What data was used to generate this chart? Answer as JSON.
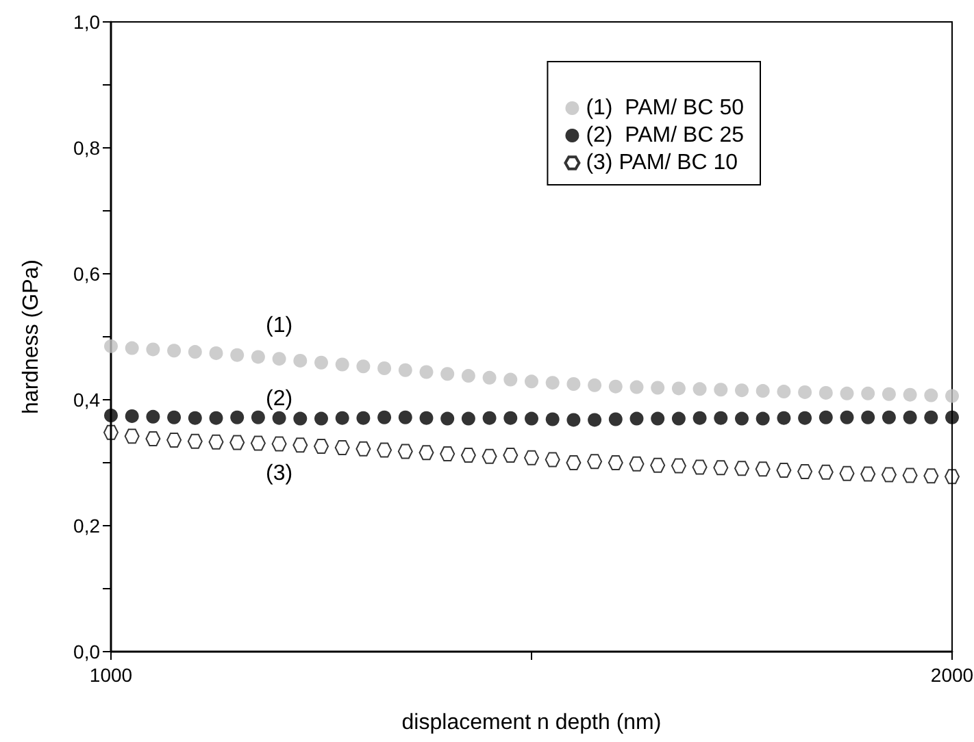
{
  "chart_data": {
    "type": "scatter",
    "xlabel": "displacement n depth (nm)",
    "ylabel": "hardness (GPa)",
    "x": [
      1000,
      1025,
      1050,
      1075,
      1100,
      1125,
      1150,
      1175,
      1200,
      1225,
      1250,
      1275,
      1300,
      1325,
      1350,
      1375,
      1400,
      1425,
      1450,
      1475,
      1500,
      1525,
      1550,
      1575,
      1600,
      1625,
      1650,
      1675,
      1700,
      1725,
      1750,
      1775,
      1800,
      1825,
      1850,
      1875,
      1900,
      1925,
      1950,
      1975,
      2000
    ],
    "series": [
      {
        "name": "(1)  PAM/ BC 50",
        "color": "#c0c0c0",
        "values": [
          0.485,
          0.482,
          0.48,
          0.478,
          0.476,
          0.474,
          0.471,
          0.468,
          0.465,
          0.462,
          0.459,
          0.456,
          0.453,
          0.45,
          0.447,
          0.444,
          0.441,
          0.438,
          0.435,
          0.432,
          0.429,
          0.427,
          0.425,
          0.423,
          0.421,
          0.42,
          0.419,
          0.418,
          0.417,
          0.416,
          0.415,
          0.414,
          0.413,
          0.412,
          0.411,
          0.41,
          0.41,
          0.409,
          0.408,
          0.407,
          0.406
        ]
      },
      {
        "name": "(2)  PAM/ BC 25",
        "color": "#000000",
        "values": [
          0.375,
          0.374,
          0.373,
          0.372,
          0.371,
          0.371,
          0.372,
          0.372,
          0.371,
          0.37,
          0.37,
          0.371,
          0.371,
          0.372,
          0.372,
          0.371,
          0.37,
          0.37,
          0.371,
          0.371,
          0.37,
          0.369,
          0.368,
          0.368,
          0.369,
          0.37,
          0.37,
          0.37,
          0.371,
          0.371,
          0.37,
          0.37,
          0.371,
          0.371,
          0.372,
          0.372,
          0.372,
          0.372,
          0.372,
          0.372,
          0.372
        ]
      },
      {
        "name": "(3) PAM/ BC 10",
        "color": "#000000",
        "values": [
          0.348,
          0.342,
          0.338,
          0.336,
          0.334,
          0.333,
          0.332,
          0.331,
          0.33,
          0.328,
          0.326,
          0.324,
          0.322,
          0.32,
          0.318,
          0.316,
          0.314,
          0.312,
          0.31,
          0.312,
          0.308,
          0.305,
          0.3,
          0.302,
          0.3,
          0.298,
          0.296,
          0.295,
          0.293,
          0.292,
          0.291,
          0.29,
          0.288,
          0.286,
          0.285,
          0.283,
          0.282,
          0.281,
          0.28,
          0.279,
          0.278
        ]
      }
    ],
    "xlim": [
      1000,
      2000
    ],
    "xticks": [
      1000,
      {
        "value": 1500,
        "label": null
      },
      2000
    ],
    "ylim": [
      0,
      1
    ],
    "yticks": [
      {
        "value": 0,
        "label": "0,0"
      },
      {
        "value": 0.1,
        "label": null
      },
      {
        "value": 0.2,
        "label": "0,2"
      },
      {
        "value": 0.3,
        "label": null
      },
      {
        "value": 0.4,
        "label": "0,4"
      },
      {
        "value": 0.5,
        "label": null
      },
      {
        "value": 0.6,
        "label": "0,6"
      },
      {
        "value": 0.7,
        "label": null
      },
      {
        "value": 0.8,
        "label": "0,8"
      },
      {
        "value": 0.9,
        "label": null
      },
      {
        "value": 1,
        "label": "1,0"
      }
    ],
    "annotations": [
      "(1)",
      "(2)",
      "(3)"
    ],
    "legend": "top right",
    "grid": false
  }
}
